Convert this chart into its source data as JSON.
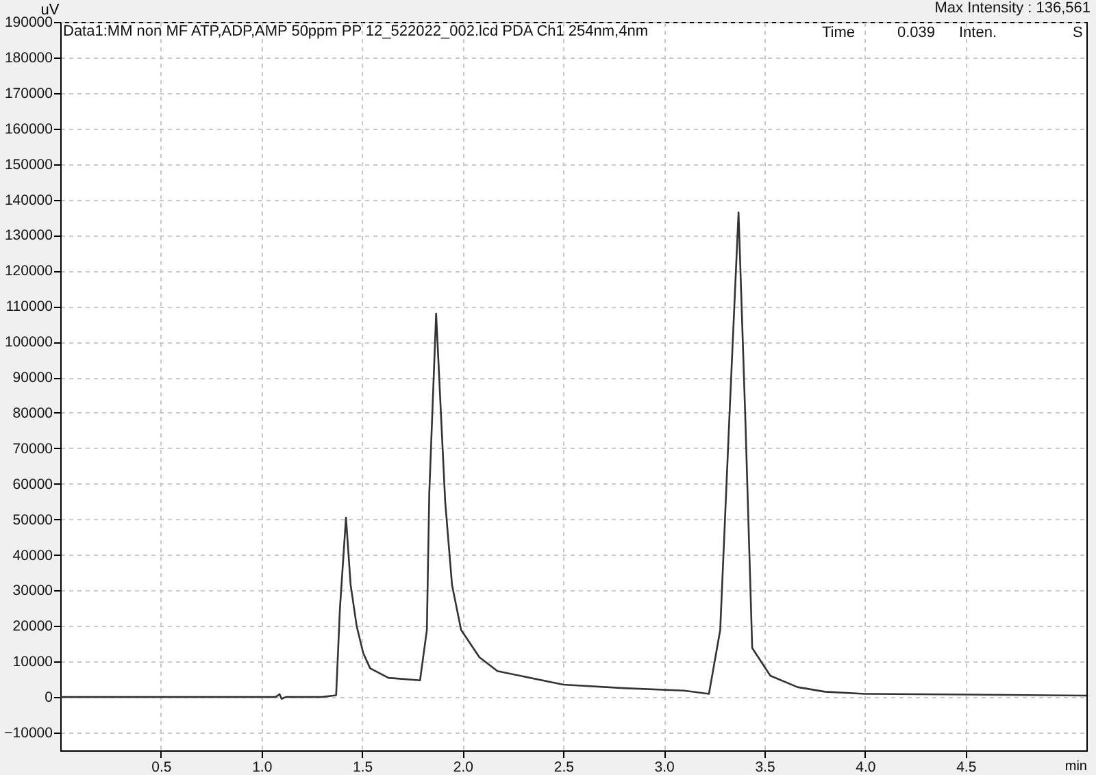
{
  "chart_data": {
    "type": "line",
    "title": "Data1:MM non MF ATP,ADP,AMP 50ppm PP 12_522022_002.lcd PDA Ch1 254nm,4nm",
    "xlabel": "min",
    "ylabel": "uV",
    "annotations": [
      "Max Intensity : 136,561",
      "Time",
      "0.039",
      "Inten.",
      "S"
    ],
    "xlim": [
      0,
      5.1
    ],
    "xticks": [
      0.5,
      {
        "value": 1,
        "label": "1.0"
      },
      1.5,
      {
        "value": 2,
        "label": "2.0"
      },
      2.5,
      {
        "value": 3,
        "label": "3.0"
      },
      3.5,
      {
        "value": 4,
        "label": "4.0"
      },
      4.5
    ],
    "ylim": [
      -15000,
      190000
    ],
    "yticks": [
      -10000,
      0,
      10000,
      20000,
      30000,
      40000,
      50000,
      60000,
      70000,
      80000,
      90000,
      100000,
      110000,
      120000,
      130000,
      140000,
      150000,
      160000,
      170000,
      180000,
      190000
    ],
    "grid": true,
    "marker": "none",
    "line_style": "solid",
    "series": [
      {
        "color": "#333333",
        "x": [
          0,
          0.5,
          1.0,
          1.07,
          1.09,
          1.1,
          1.12,
          1.3,
          1.371,
          1.39,
          1.42,
          1.443,
          1.473,
          1.506,
          1.54,
          1.631,
          1.788,
          1.822,
          1.834,
          1.868,
          1.913,
          1.947,
          1.992,
          2.083,
          2.173,
          2.5,
          2.8,
          3.1,
          3.224,
          3.28,
          3.325,
          3.371,
          3.405,
          3.439,
          3.529,
          3.664,
          3.8,
          4.0,
          4.5,
          5.1
        ],
        "values": [
          0,
          0,
          0,
          0,
          800,
          -500,
          0,
          0,
          500,
          25000,
          50500,
          31600,
          20000,
          12300,
          8100,
          5400,
          4700,
          18900,
          57400,
          107900,
          55000,
          31600,
          18900,
          11200,
          7300,
          3500,
          2500,
          1800,
          900,
          18900,
          78000,
          136400,
          78000,
          13800,
          6000,
          2800,
          1500,
          900,
          700,
          400
        ]
      }
    ]
  }
}
